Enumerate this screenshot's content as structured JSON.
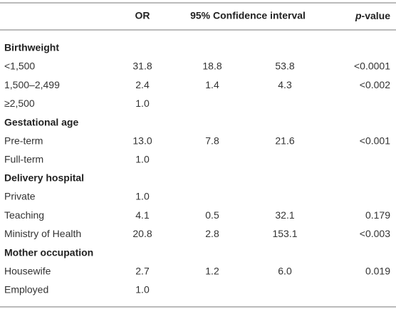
{
  "header": {
    "or": "OR",
    "ci": "95% Confidence interval",
    "p_italic": "p",
    "p_rest": "-value"
  },
  "sections": [
    {
      "title": "Birthweight",
      "rows": [
        [
          "<1,500",
          "31.8",
          "18.8",
          "53.8",
          "<0.0001"
        ],
        [
          "1,500–2,499",
          "2.4",
          "1.4",
          "4.3",
          "<0.002"
        ],
        [
          "≥2,500",
          "1.0"
        ]
      ]
    },
    {
      "title": "Gestational age",
      "rows": [
        [
          "Pre-term",
          "13.0",
          "7.8",
          "21.6",
          "<0.001"
        ],
        [
          "Full-term",
          "1.0"
        ]
      ]
    },
    {
      "title": "Delivery hospital",
      "rows": [
        [
          "Private",
          "1.0"
        ],
        [
          "Teaching",
          "4.1",
          "0.5",
          "32.1",
          "0.179"
        ],
        [
          "Ministry of Health",
          "20.8",
          "2.8",
          "153.1",
          "<0.003"
        ]
      ]
    },
    {
      "title": "Mother occupation",
      "rows": [
        [
          "Housewife",
          "2.7",
          "1.2",
          "6.0",
          "0.019"
        ],
        [
          "Employed",
          "1.0"
        ]
      ]
    }
  ]
}
